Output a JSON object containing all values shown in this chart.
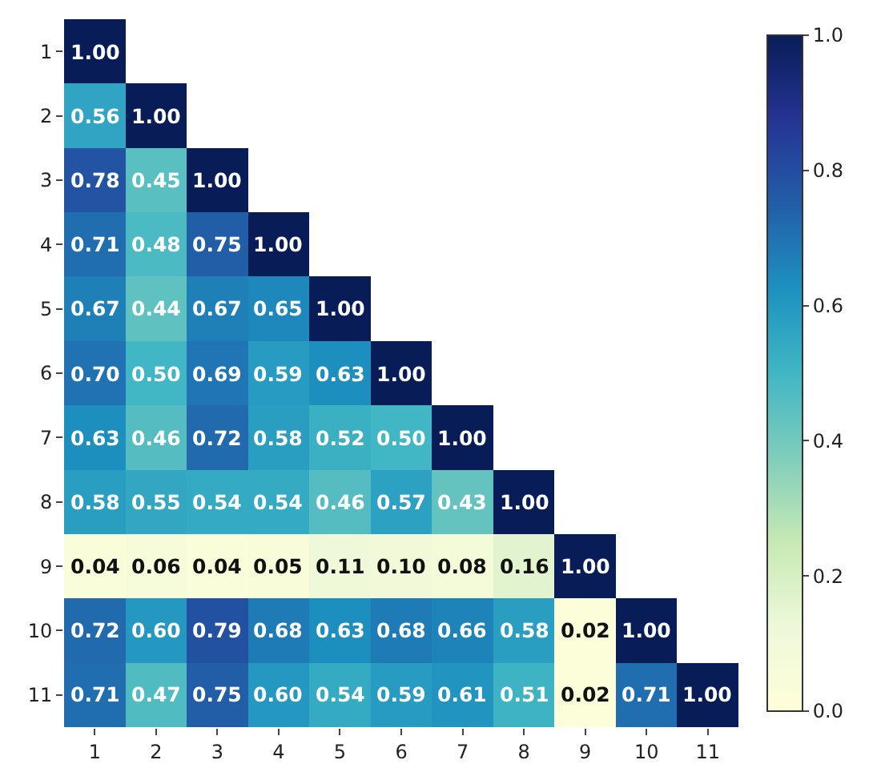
{
  "chart_data": {
    "type": "heatmap",
    "categories": [
      "1",
      "2",
      "3",
      "4",
      "5",
      "6",
      "7",
      "8",
      "9",
      "10",
      "11"
    ],
    "y_categories": [
      "1",
      "2",
      "3",
      "4",
      "5",
      "6",
      "7",
      "8",
      "9",
      "10",
      "11"
    ],
    "cells": [
      [
        1.0,
        null,
        null,
        null,
        null,
        null,
        null,
        null,
        null,
        null,
        null
      ],
      [
        0.56,
        1.0,
        null,
        null,
        null,
        null,
        null,
        null,
        null,
        null,
        null
      ],
      [
        0.78,
        0.45,
        1.0,
        null,
        null,
        null,
        null,
        null,
        null,
        null,
        null
      ],
      [
        0.71,
        0.48,
        0.75,
        1.0,
        null,
        null,
        null,
        null,
        null,
        null,
        null
      ],
      [
        0.67,
        0.44,
        0.67,
        0.65,
        1.0,
        null,
        null,
        null,
        null,
        null,
        null
      ],
      [
        0.7,
        0.5,
        0.69,
        0.59,
        0.63,
        1.0,
        null,
        null,
        null,
        null,
        null
      ],
      [
        0.63,
        0.46,
        0.72,
        0.58,
        0.52,
        0.5,
        1.0,
        null,
        null,
        null,
        null
      ],
      [
        0.58,
        0.55,
        0.54,
        0.54,
        0.46,
        0.57,
        0.43,
        1.0,
        null,
        null,
        null
      ],
      [
        0.04,
        0.06,
        0.04,
        0.05,
        0.11,
        0.1,
        0.08,
        0.16,
        1.0,
        null,
        null
      ],
      [
        0.72,
        0.6,
        0.79,
        0.68,
        0.63,
        0.68,
        0.66,
        0.58,
        0.02,
        1.0,
        null
      ],
      [
        0.71,
        0.47,
        0.75,
        0.6,
        0.54,
        0.59,
        0.61,
        0.51,
        0.02,
        0.71,
        1.0
      ]
    ],
    "cell_labels": [
      [
        "1.00",
        null,
        null,
        null,
        null,
        null,
        null,
        null,
        null,
        null,
        null
      ],
      [
        "0.56",
        "1.00",
        null,
        null,
        null,
        null,
        null,
        null,
        null,
        null,
        null
      ],
      [
        "0.78",
        "0.45",
        "1.00",
        null,
        null,
        null,
        null,
        null,
        null,
        null,
        null
      ],
      [
        "0.71",
        "0.48",
        "0.75",
        "1.00",
        null,
        null,
        null,
        null,
        null,
        null,
        null
      ],
      [
        "0.67",
        "0.44",
        "0.67",
        "0.65",
        "1.00",
        null,
        null,
        null,
        null,
        null,
        null
      ],
      [
        "0.70",
        "0.50",
        "0.69",
        "0.59",
        "0.63",
        "1.00",
        null,
        null,
        null,
        null,
        null
      ],
      [
        "0.63",
        "0.46",
        "0.72",
        "0.58",
        "0.52",
        "0.50",
        "1.00",
        null,
        null,
        null,
        null
      ],
      [
        "0.58",
        "0.55",
        "0.54",
        "0.54",
        "0.46",
        "0.57",
        "0.43",
        "1.00",
        null,
        null,
        null
      ],
      [
        "0.04",
        "0.06",
        "0.04",
        "0.05",
        "0.11",
        "0.10",
        "0.08",
        "0.16",
        "1.00",
        null,
        null
      ],
      [
        "0.72",
        "0.60",
        "0.79",
        "0.68",
        "0.63",
        "0.68",
        "0.66",
        "0.58",
        "0.02",
        "1.00",
        null
      ],
      [
        "0.71",
        "0.47",
        "0.75",
        "0.60",
        "0.54",
        "0.59",
        "0.61",
        "0.51",
        "0.02",
        "0.71",
        "1.00"
      ]
    ],
    "clim": [
      0.0,
      1.0
    ],
    "cticks": [
      {
        "value": 0,
        "label": "0.0"
      },
      0.2,
      0.4,
      0.6,
      0.8,
      {
        "value": 1,
        "label": "1.0"
      }
    ]
  }
}
